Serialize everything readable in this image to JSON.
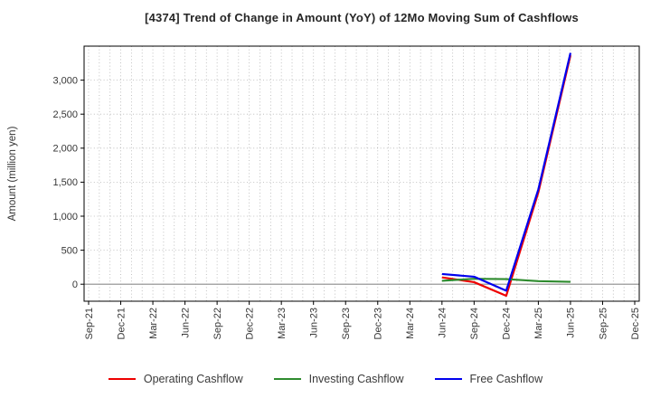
{
  "chart_data": {
    "type": "line",
    "title": "[4374]  Trend of Change in Amount (YoY) of 12Mo Moving Sum of Cashflows",
    "ylabel": "Amount (million yen)",
    "categories": [
      "Sep-21",
      "Dec-21",
      "Mar-22",
      "Jun-22",
      "Sep-22",
      "Dec-22",
      "Mar-23",
      "Jun-23",
      "Sep-23",
      "Dec-23",
      "Mar-24",
      "Jun-24",
      "Sep-24",
      "Dec-24",
      "Mar-25",
      "Jun-25",
      "Sep-25",
      "Dec-25"
    ],
    "yticks": [
      {
        "value": 0,
        "label": "0"
      },
      {
        "value": 500,
        "label": "500"
      },
      {
        "value": 1000,
        "label": "1,000"
      },
      {
        "value": 1500,
        "label": "1,500"
      },
      {
        "value": 2000,
        "label": "2,000"
      },
      {
        "value": 2500,
        "label": "2,500"
      },
      {
        "value": 3000,
        "label": "3,000"
      }
    ],
    "ylim": [
      -250,
      3500
    ],
    "grid": "dotted; vertical gridlines monthly, horizontal every 500",
    "zero_line": true,
    "legend_position": "bottom-center",
    "series": [
      {
        "name": "Operating Cashflow",
        "color": "#ee0000",
        "points": [
          {
            "x": "Jun-24",
            "y": 100
          },
          {
            "x": "Sep-24",
            "y": 30
          },
          {
            "x": "Dec-24",
            "y": -170
          },
          {
            "x": "Mar-25",
            "y": 1350
          },
          {
            "x": "Jun-25",
            "y": 3365
          }
        ]
      },
      {
        "name": "Investing Cashflow",
        "color": "#2e8b2e",
        "points": [
          {
            "x": "Jun-24",
            "y": 50
          },
          {
            "x": "Sep-24",
            "y": 80
          },
          {
            "x": "Dec-24",
            "y": 75
          },
          {
            "x": "Mar-25",
            "y": 45
          },
          {
            "x": "Jun-25",
            "y": 35
          }
        ]
      },
      {
        "name": "Free Cashflow",
        "color": "#0000ee",
        "points": [
          {
            "x": "Jun-24",
            "y": 150
          },
          {
            "x": "Sep-24",
            "y": 110
          },
          {
            "x": "Dec-24",
            "y": -95
          },
          {
            "x": "Mar-25",
            "y": 1395
          },
          {
            "x": "Jun-25",
            "y": 3400
          }
        ]
      }
    ]
  }
}
